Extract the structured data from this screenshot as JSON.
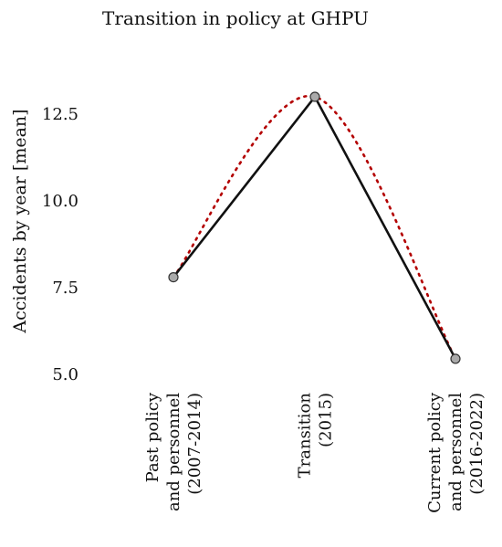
{
  "chart_data": {
    "type": "line",
    "title": "Transition in policy at GHPU",
    "xlabel": "",
    "ylabel": "Accidents by year [mean]",
    "categories": [
      [
        "Past policy",
        "and personnel",
        "(2007-2014)"
      ],
      [
        "Transition",
        "(2015)"
      ],
      [
        "Current policy",
        "and personnel",
        "(2016-2022)"
      ]
    ],
    "yticks": [
      "5.0",
      "7.5",
      "10.0",
      "12.5"
    ],
    "ytick_values": [
      5.0,
      7.5,
      10.0,
      12.5
    ],
    "ylim": [
      5.0,
      13.3
    ],
    "series": [
      {
        "values": [
          7.8,
          13.0,
          5.45
        ],
        "style": "solid",
        "color": "#111111",
        "marker_color": "#aaaaaa"
      }
    ],
    "smooth_fit": {
      "style": "dotted",
      "color": "#b30000"
    },
    "grid": false,
    "legend": "none"
  }
}
